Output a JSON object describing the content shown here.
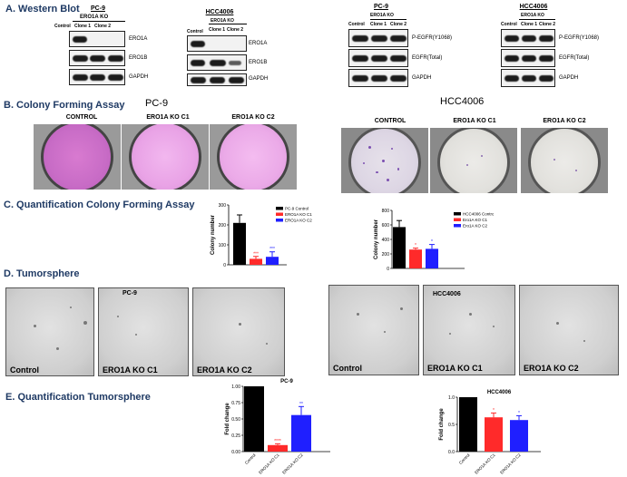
{
  "sections": {
    "a": "A. Western Blot",
    "b": "B. Colony Forming Assay",
    "c": "C. Quantification Colony Forming Assay",
    "d": "D. Tumorsphere",
    "e": "E. Quantification Tumorsphere"
  },
  "western_blot": {
    "panels": [
      {
        "title": "PC-9",
        "subtitle": "ERO1A KO",
        "lanes": [
          "Control",
          "Clone 1",
          "Clone 2"
        ],
        "rows": [
          "ERO1A",
          "ERO1B",
          "GAPDH"
        ]
      },
      {
        "title": "HCC4006",
        "subtitle": "ERO1A KO",
        "lanes": [
          "Control",
          "Clone 1",
          "Clone 2"
        ],
        "rows": [
          "ERO1A",
          "ERO1B",
          "GAPDH"
        ]
      },
      {
        "title": "PC-9",
        "subtitle": "ERO1A KO",
        "lanes": [
          "Control",
          "Clone 1",
          "Clone 2"
        ],
        "rows": [
          "P-EGFR(Y1068)",
          "EGFR(Total)",
          "GAPDH"
        ]
      },
      {
        "title": "HCC4006",
        "subtitle": "ERO1A KO",
        "lanes": [
          "Control",
          "Clone 1",
          "Clone 2"
        ],
        "rows": [
          "P-EGFR(Y1068)",
          "EGFR(Total)",
          "GAPDH"
        ]
      }
    ]
  },
  "colony": {
    "pc9_title": "PC-9",
    "hcc_title": "HCC4006",
    "pc9_labels": [
      "CONTROL",
      "ERO1A KO C1",
      "ERO1A KO C2"
    ],
    "hcc_labels": [
      "CONTROL",
      "ERO1A KO C1",
      "ERO1A KO C2"
    ]
  },
  "tumorsphere": {
    "pc9_tag": "PC-9",
    "hcc_tag": "HCC4006",
    "pc9_labels": [
      "Control",
      "ERO1A KO C1",
      "ERO1A KO C2"
    ],
    "hcc_labels": [
      "Control",
      "ERO1A KO C1",
      "ERO1A KO C2"
    ]
  },
  "colors": {
    "control": "#000000",
    "c1": "#ff2a2a",
    "c2": "#1f1fff",
    "section": "#1f3a64"
  },
  "chart_data": [
    {
      "id": "colony-pc9",
      "type": "bar",
      "title": "",
      "ylabel": "Colony number",
      "ylim": [
        0,
        300
      ],
      "yticks": [
        "0",
        "100",
        "200",
        "300"
      ],
      "legend": [
        "PC-9 Control",
        "ERO1A KO C1",
        "ERO1A KO C2"
      ],
      "values": [
        210,
        30,
        40
      ],
      "errors": [
        40,
        12,
        25
      ],
      "significance": [
        "",
        "***",
        "***"
      ],
      "xticklabels": []
    },
    {
      "id": "colony-hcc",
      "type": "bar",
      "title": "",
      "ylabel": "Colony number",
      "ylim": [
        0,
        800
      ],
      "yticks": [
        "0",
        "200",
        "400",
        "600",
        "800"
      ],
      "legend": [
        "HCC4006 Control",
        "Ero1A KO C1",
        "Ero1A KO C2"
      ],
      "values": [
        570,
        260,
        270
      ],
      "errors": [
        90,
        20,
        60
      ],
      "significance": [
        "",
        "*",
        "*"
      ],
      "xticklabels": []
    },
    {
      "id": "tsph-pc9",
      "type": "bar",
      "title": "PC-9",
      "ylabel": "Fold change",
      "ylim": [
        0,
        1
      ],
      "yticks": [
        "0.00",
        "0.25",
        "0.50",
        "0.75",
        "1.00"
      ],
      "legend": [],
      "values": [
        1.0,
        0.1,
        0.56
      ],
      "errors": [
        0,
        0.02,
        0.13
      ],
      "significance": [
        "",
        "****",
        "**"
      ],
      "xticklabels": [
        "Control",
        "ERO1A KO C1",
        "ERO1A KO C2"
      ]
    },
    {
      "id": "tsph-hcc",
      "type": "bar",
      "title": "HCC4006",
      "ylabel": "Fold change",
      "ylim": [
        0,
        1
      ],
      "yticks": [
        "0.0",
        "0.5",
        "1.0"
      ],
      "legend": [],
      "values": [
        1.0,
        0.63,
        0.58
      ],
      "errors": [
        0,
        0.08,
        0.08
      ],
      "significance": [
        "",
        "*",
        "*"
      ],
      "xticklabels": [
        "Control",
        "ERO1A KO C1",
        "ERO1A KO C2"
      ]
    }
  ]
}
